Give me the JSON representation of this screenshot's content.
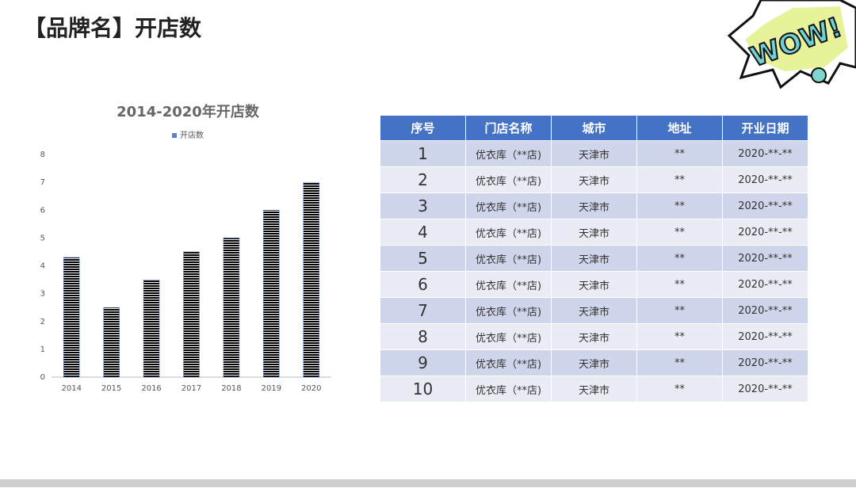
{
  "header": {
    "title": "【品牌名】开店数"
  },
  "decoration": {
    "text": "WOW!"
  },
  "chart_data": {
    "type": "bar",
    "title": "2014-2020年开店数",
    "categories": [
      "2014",
      "2015",
      "2016",
      "2017",
      "2018",
      "2019",
      "2020"
    ],
    "series": [
      {
        "name": "开店数",
        "color": "#5b7fc7",
        "values": [
          4.3,
          2.5,
          3.5,
          4.5,
          5,
          6,
          7
        ]
      }
    ],
    "ylim": [
      0,
      8
    ],
    "yticks": [
      0,
      1,
      2,
      3,
      4,
      5,
      6,
      7,
      8
    ],
    "grid": false
  },
  "table": {
    "header": [
      "序号",
      "门店名称",
      "城市",
      "地址",
      "开业日期"
    ],
    "rows": [
      [
        "1",
        "优衣库（**店)",
        "天津市",
        "**",
        "2020-**-**"
      ],
      [
        "2",
        "优衣库（**店)",
        "天津市",
        "**",
        "2020-**-**"
      ],
      [
        "3",
        "优衣库（**店)",
        "天津市",
        "**",
        "2020-**-**"
      ],
      [
        "4",
        "优衣库（**店)",
        "天津市",
        "**",
        "2020-**-**"
      ],
      [
        "5",
        "优衣库（**店)",
        "天津市",
        "**",
        "2020-**-**"
      ],
      [
        "6",
        "优衣库（**店)",
        "天津市",
        "**",
        "2020-**-**"
      ],
      [
        "7",
        "优衣库（**店)",
        "天津市",
        "**",
        "2020-**-**"
      ],
      [
        "8",
        "优衣库（**店)",
        "天津市",
        "**",
        "2020-**-**"
      ],
      [
        "9",
        "优衣库（**店)",
        "天津市",
        "**",
        "2020-**-**"
      ],
      [
        "10",
        "优衣库（**店)",
        "天津市",
        "**",
        "2020-**-**"
      ]
    ]
  }
}
